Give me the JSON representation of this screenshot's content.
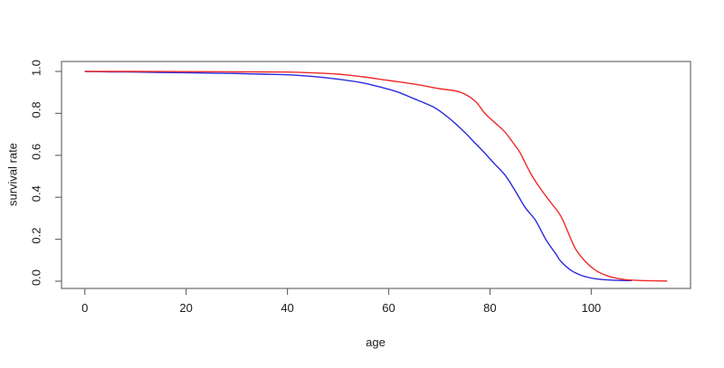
{
  "chart_data": {
    "type": "line",
    "title": "",
    "xlabel": "age",
    "ylabel": "survival rate",
    "xlim": [
      -4.6,
      119.6
    ],
    "ylim": [
      -0.0345,
      1.0474
    ],
    "x_range_data": [
      0,
      115
    ],
    "y_range_data": [
      0,
      1
    ],
    "x_tick_values": [
      0,
      20,
      40,
      60,
      80,
      100
    ],
    "x_tick_labels": [
      "0",
      "20",
      "40",
      "60",
      "80",
      "100"
    ],
    "y_tick_values": [
      0.0,
      0.2,
      0.4,
      0.6,
      0.8,
      1.0
    ],
    "y_tick_labels": [
      "0.0",
      "0.2",
      "0.4",
      "0.6",
      "0.8",
      "1.0"
    ],
    "grid": false,
    "legend": "none",
    "background_color": "#ffffff",
    "frame_color": "#6b6b6b",
    "text_color": "#1a1a1a",
    "series": [
      {
        "name": "survival-curve-blue",
        "color": "#2a2add",
        "points": [
          [
            0,
            1.0
          ],
          [
            5,
            0.998
          ],
          [
            10,
            0.997
          ],
          [
            15,
            0.995
          ],
          [
            20,
            0.994
          ],
          [
            25,
            0.992
          ],
          [
            30,
            0.99
          ],
          [
            35,
            0.987
          ],
          [
            40,
            0.984
          ],
          [
            45,
            0.976
          ],
          [
            50,
            0.963
          ],
          [
            55,
            0.945
          ],
          [
            60,
            0.915
          ],
          [
            62,
            0.9
          ],
          [
            65,
            0.87
          ],
          [
            67,
            0.85
          ],
          [
            69,
            0.828
          ],
          [
            71,
            0.795
          ],
          [
            73,
            0.755
          ],
          [
            75,
            0.71
          ],
          [
            77,
            0.66
          ],
          [
            79,
            0.61
          ],
          [
            81,
            0.557
          ],
          [
            83,
            0.505
          ],
          [
            85,
            0.43
          ],
          [
            87,
            0.35
          ],
          [
            89,
            0.29
          ],
          [
            91,
            0.2
          ],
          [
            93,
            0.13
          ],
          [
            94,
            0.095
          ],
          [
            96,
            0.052
          ],
          [
            98,
            0.028
          ],
          [
            100,
            0.015
          ],
          [
            102,
            0.008
          ],
          [
            105,
            0.004
          ],
          [
            108,
            0.003
          ]
        ]
      },
      {
        "name": "survival-curve-red",
        "color": "#ee2a2a",
        "points": [
          [
            0,
            1.0
          ],
          [
            10,
            1.0
          ],
          [
            20,
            0.999
          ],
          [
            30,
            0.998
          ],
          [
            40,
            0.997
          ],
          [
            45,
            0.993
          ],
          [
            50,
            0.987
          ],
          [
            55,
            0.974
          ],
          [
            60,
            0.957
          ],
          [
            65,
            0.94
          ],
          [
            70,
            0.918
          ],
          [
            74,
            0.902
          ],
          [
            77,
            0.86
          ],
          [
            79,
            0.8
          ],
          [
            81,
            0.755
          ],
          [
            83,
            0.71
          ],
          [
            85,
            0.645
          ],
          [
            86,
            0.61
          ],
          [
            88,
            0.515
          ],
          [
            90,
            0.44
          ],
          [
            92,
            0.375
          ],
          [
            94,
            0.31
          ],
          [
            96,
            0.2
          ],
          [
            97,
            0.15
          ],
          [
            99,
            0.09
          ],
          [
            101,
            0.05
          ],
          [
            103,
            0.027
          ],
          [
            105,
            0.014
          ],
          [
            107,
            0.007
          ],
          [
            110,
            0.003
          ],
          [
            115,
            0.001
          ]
        ]
      }
    ]
  }
}
